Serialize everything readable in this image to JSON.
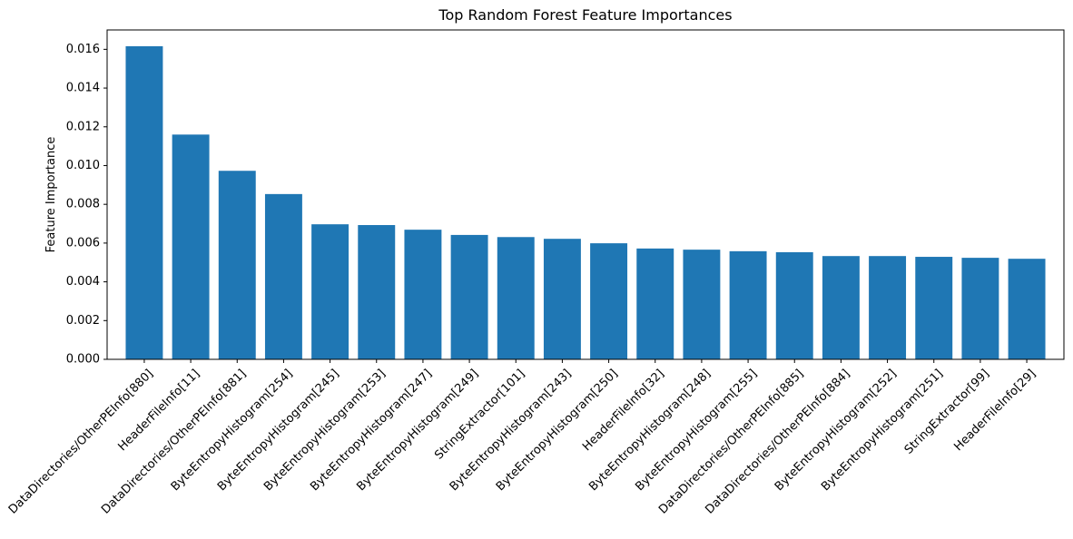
{
  "chart_data": {
    "type": "bar",
    "title": "Top Random Forest Feature Importances",
    "xlabel": "",
    "ylabel": "Feature Importance",
    "ylim": [
      0,
      0.017
    ],
    "yticks": [
      "0.000",
      "0.002",
      "0.004",
      "0.006",
      "0.008",
      "0.010",
      "0.012",
      "0.014",
      "0.016"
    ],
    "grid": false,
    "bar_color": "#1f77b4",
    "categories": [
      "DataDirectories/OtherPEInfo[880]",
      "HeaderFileInfo[11]",
      "DataDirectories/OtherPEInfo[881]",
      "ByteEntropyHistogram[254]",
      "ByteEntropyHistogram[245]",
      "ByteEntropyHistogram[253]",
      "ByteEntropyHistogram[247]",
      "ByteEntropyHistogram[249]",
      "StringExtractor[101]",
      "ByteEntropyHistogram[243]",
      "ByteEntropyHistogram[250]",
      "HeaderFileInfo[32]",
      "ByteEntropyHistogram[248]",
      "ByteEntropyHistogram[255]",
      "DataDirectories/OtherPEInfo[885]",
      "DataDirectories/OtherPEInfo[884]",
      "ByteEntropyHistogram[252]",
      "ByteEntropyHistogram[251]",
      "StringExtractor[99]",
      "HeaderFileInfo[29]"
    ],
    "values": [
      0.01616,
      0.0116,
      0.00973,
      0.00853,
      0.00697,
      0.00693,
      0.00669,
      0.00642,
      0.00631,
      0.00622,
      0.00599,
      0.00572,
      0.00566,
      0.00558,
      0.00553,
      0.00533,
      0.00533,
      0.00529,
      0.00524,
      0.00519
    ]
  }
}
